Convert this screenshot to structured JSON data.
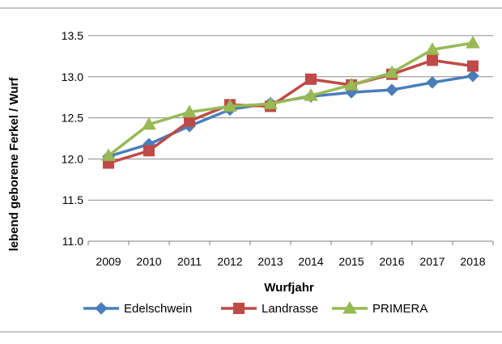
{
  "chart_data": {
    "type": "line",
    "title": "",
    "xlabel": "Wurfjahr",
    "ylabel": "lebend geborene Ferkel / Wurf",
    "ylim": [
      11.0,
      13.5
    ],
    "ytick_step": 0.5,
    "grid": true,
    "legend": "bottom",
    "categories": [
      "2009",
      "2010",
      "2011",
      "2012",
      "2013",
      "2014",
      "2015",
      "2016",
      "2017",
      "2018"
    ],
    "series": [
      {
        "name": "Edelschwein",
        "color": "#4a7ebb",
        "marker": "diamond",
        "values": [
          12.03,
          12.18,
          12.4,
          12.6,
          12.68,
          12.76,
          12.81,
          12.84,
          12.93,
          13.01
        ]
      },
      {
        "name": "Landrasse",
        "color": "#be4b48",
        "marker": "square",
        "values": [
          11.95,
          12.1,
          12.46,
          12.66,
          12.64,
          12.97,
          12.9,
          13.03,
          13.2,
          13.13
        ]
      },
      {
        "name": "PRIMERA",
        "color": "#98b954",
        "marker": "triangle",
        "values": [
          12.04,
          12.42,
          12.57,
          12.64,
          12.67,
          12.77,
          12.9,
          13.05,
          13.33,
          13.41
        ]
      }
    ]
  }
}
